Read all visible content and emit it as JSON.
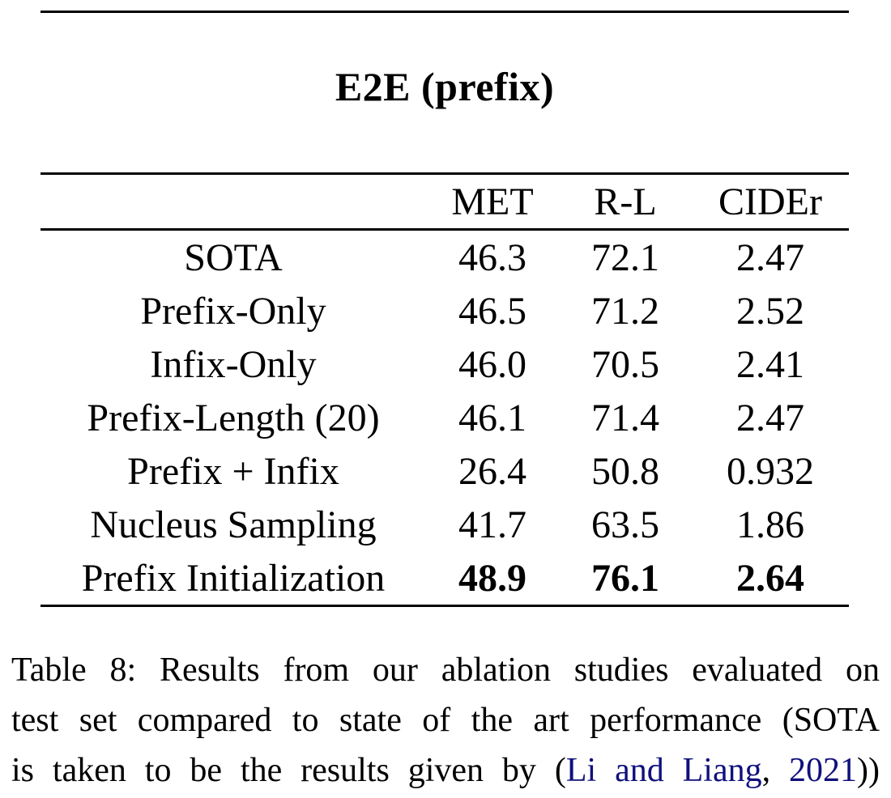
{
  "page": {
    "background": "#ffffff",
    "text_color": "#000000",
    "link_color": "#10107d",
    "rule_color": "#000000"
  },
  "title": "E2E (prefix)",
  "table": {
    "columns": [
      "",
      "MET",
      "R-L",
      "CIDEr"
    ],
    "rows": [
      {
        "label": "SOTA",
        "met": "46.3",
        "rl": "72.1",
        "cider": "2.47",
        "bold": false
      },
      {
        "label": "Prefix-Only",
        "met": "46.5",
        "rl": "71.2",
        "cider": "2.52",
        "bold": false
      },
      {
        "label": "Infix-Only",
        "met": "46.0",
        "rl": "70.5",
        "cider": "2.41",
        "bold": false
      },
      {
        "label": "Prefix-Length (20)",
        "met": "46.1",
        "rl": "71.4",
        "cider": "2.47",
        "bold": false
      },
      {
        "label": "Prefix + Infix",
        "met": "26.4",
        "rl": "50.8",
        "cider": "0.932",
        "bold": false
      },
      {
        "label": "Nucleus Sampling",
        "met": "41.7",
        "rl": "63.5",
        "cider": "1.86",
        "bold": false
      },
      {
        "label": "Prefix Initialization",
        "met": "48.9",
        "rl": "76.1",
        "cider": "2.64",
        "bold": true
      }
    ]
  },
  "caption": {
    "lines": [
      {
        "segments": [
          {
            "text": "Table 8: Results from our ablation studies evaluated on",
            "link": false
          }
        ]
      },
      {
        "segments": [
          {
            "text": "test set compared to state of the art performance (SOTA",
            "link": false
          }
        ]
      },
      {
        "segments": [
          {
            "text": "is taken to be the results given by (",
            "link": false
          },
          {
            "text": "Li and Liang",
            "link": true,
            "name": "citation-link-authors"
          },
          {
            "text": ", ",
            "link": false
          },
          {
            "text": "2021",
            "link": true,
            "name": "citation-link-year"
          },
          {
            "text": "))",
            "link": false
          }
        ]
      }
    ]
  }
}
